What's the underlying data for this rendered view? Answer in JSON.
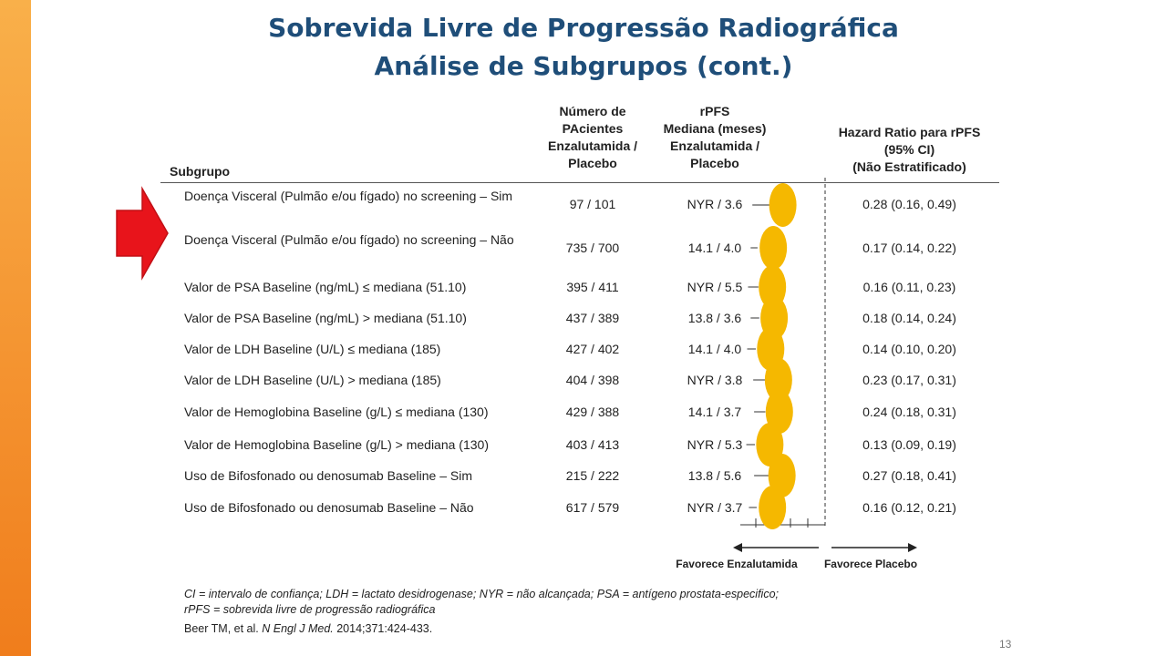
{
  "slide": {
    "title_line1": "Sobrevida Livre de Progressão Radiográfica",
    "title_line2": "Análise de Subgrupos (cont.)",
    "page_number": "13"
  },
  "headers": {
    "subgroup": "Subgrupo",
    "patients": [
      "Número de",
      "PAcientes",
      "Enzalutamida /",
      "Placebo"
    ],
    "median": [
      "rPFS",
      "Mediana (meses)",
      "Enzalutamida /",
      "Placebo"
    ],
    "hazard": [
      "Hazard Ratio para rPFS",
      "(95% CI)",
      "(Não Estratificado)"
    ]
  },
  "rows": [
    {
      "subgroup": "Doença Visceral (Pulmão e/ou fígado) no screening – Sim",
      "patients": "97 / 101",
      "median": "NYR / 3.6",
      "hr_text": "0.28 (0.16, 0.49)"
    },
    {
      "subgroup": "Doença Visceral (Pulmão e/ou fígado) no screening – Não",
      "patients": "735 / 700",
      "median": "14.1 / 4.0",
      "hr_text": "0.17 (0.14, 0.22)"
    },
    {
      "subgroup": "Valor de PSA Baseline (ng/mL) ≤ mediana (51.10)",
      "patients": "395 / 411",
      "median": "NYR / 5.5",
      "hr_text": "0.16 (0.11, 0.23)"
    },
    {
      "subgroup": "Valor de PSA Baseline (ng/mL) > mediana (51.10)",
      "patients": "437 / 389",
      "median": "13.8 / 3.6",
      "hr_text": "0.18 (0.14, 0.24)"
    },
    {
      "subgroup": "Valor de LDH Baseline (U/L)  ≤ mediana (185)",
      "patients": "427 / 402",
      "median": "14.1 / 4.0",
      "hr_text": "0.14 (0.10, 0.20)"
    },
    {
      "subgroup": "Valor de LDH Baseline (U/L) > mediana (185)",
      "patients": "404 / 398",
      "median": "NYR / 3.8",
      "hr_text": "0.23 (0.17, 0.31)"
    },
    {
      "subgroup": "Valor de Hemoglobina Baseline (g/L) ≤ mediana (130)",
      "patients": "429 / 388",
      "median": "14.1 / 3.7",
      "hr_text": "0.24 (0.18, 0.31)"
    },
    {
      "subgroup": "Valor de Hemoglobina Baseline (g/L) > mediana (130)",
      "patients": "403 / 413",
      "median": "NYR / 5.3",
      "hr_text": "0.13 (0.09, 0.19)"
    },
    {
      "subgroup": "Uso de Bifosfonado ou denosumab Baseline – Sim",
      "patients": "215 / 222",
      "median": "13.8 / 5.6",
      "hr_text": "0.27 (0.18, 0.41)"
    },
    {
      "subgroup": "Uso de Bifosfonado ou denosumab Baseline – Não",
      "patients": "617 / 579",
      "median": "NYR / 3.7",
      "hr_text": "0.16 (0.12, 0.21)"
    }
  ],
  "chart_data": {
    "type": "scatter",
    "title": "",
    "xlabel": "",
    "reference_line": 1.0,
    "xlim": [
      0.0,
      1.4
    ],
    "marker_color": "#f5b800",
    "categories": [
      "Doença Visceral (Pulmão e/ou fígado) no screening – Sim",
      "Doença Visceral (Pulmão e/ou fígado) no screening – Não",
      "Valor de PSA Baseline (ng/mL) ≤ mediana (51.10)",
      "Valor de PSA Baseline (ng/mL) > mediana (51.10)",
      "Valor de LDH Baseline (U/L)  ≤ mediana (185)",
      "Valor de LDH Baseline (U/L) > mediana (185)",
      "Valor de Hemoglobina Baseline (g/L) ≤ mediana (130)",
      "Valor de Hemoglobina Baseline (g/L) > mediana (130)",
      "Uso de Bifosfonado ou denosumab Baseline – Sim",
      "Uso de Bifosfonado ou denosumab Baseline – Não"
    ],
    "hr": [
      0.28,
      0.17,
      0.16,
      0.18,
      0.14,
      0.23,
      0.24,
      0.13,
      0.27,
      0.16
    ],
    "ci_low": [
      0.16,
      0.14,
      0.11,
      0.14,
      0.1,
      0.17,
      0.18,
      0.09,
      0.18,
      0.12
    ],
    "ci_high": [
      0.49,
      0.22,
      0.23,
      0.24,
      0.2,
      0.31,
      0.31,
      0.19,
      0.41,
      0.21
    ],
    "axis_labels": {
      "left": "Favorece Enzalutamida",
      "right": "Favorece Placebo"
    }
  },
  "footnote": {
    "line1": "CI = intervalo de confiança; LDH = lactato desidrogenase; NYR = não alcançada; PSA = antígeno prostata-especifico;",
    "line2": "rPFS = sobrevida livre de progressão radiográfica",
    "ref_authors": "Beer TM, et al.",
    "ref_journal": "N Engl J Med.",
    "ref_detail": "2014;371:424-433."
  },
  "colors": {
    "title": "#1f4e79",
    "accent_bar": "#f39a2e",
    "arrow": "#e8141b",
    "marker": "#f5b800"
  }
}
